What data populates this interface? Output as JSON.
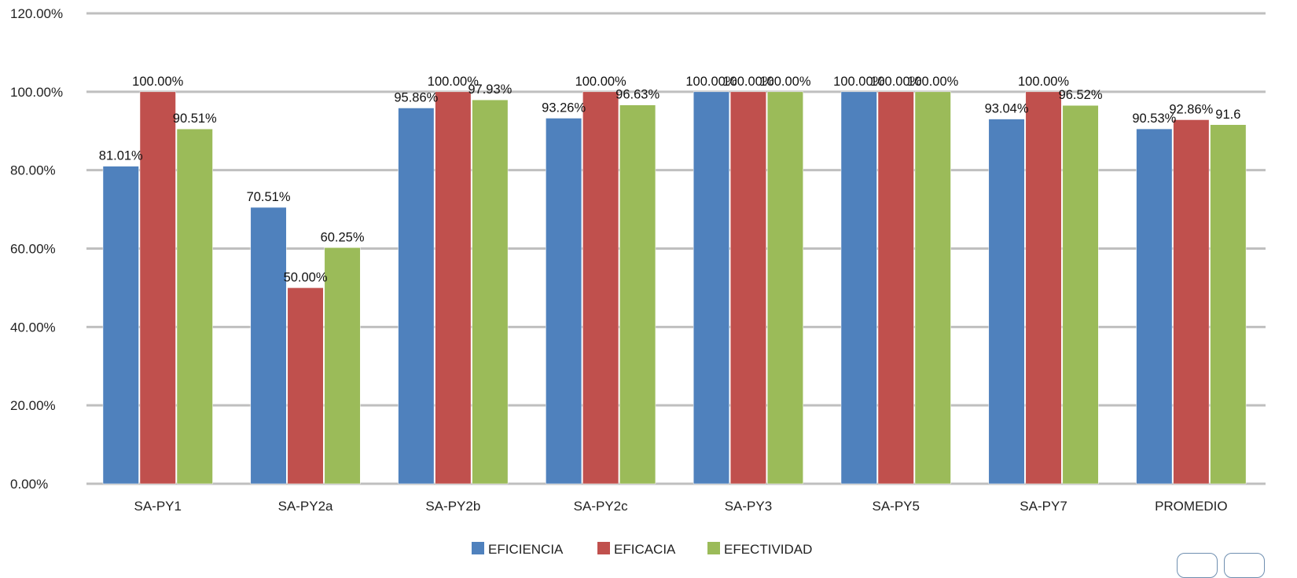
{
  "chart_data": {
    "type": "bar",
    "categories": [
      "SA-PY1",
      "SA-PY2a",
      "SA-PY2b",
      "SA-PY2c",
      "SA-PY3",
      "SA-PY5",
      "SA-PY7",
      "PROMEDIO"
    ],
    "series": [
      {
        "name": "EFICIENCIA",
        "color": "#4f81bd",
        "values": [
          81.01,
          70.51,
          95.86,
          93.26,
          100.0,
          100.0,
          93.04,
          90.53
        ],
        "labels": [
          "81.01%",
          "70.51%",
          "95.86%",
          "93.26%",
          "100.00%",
          "100.00%",
          "93.04%",
          "90.53%"
        ]
      },
      {
        "name": "EFICACIA",
        "color": "#c0504d",
        "values": [
          100.0,
          50.0,
          100.0,
          100.0,
          100.0,
          100.0,
          100.0,
          92.86
        ],
        "labels": [
          "100.00%",
          "50.00%",
          "100.00%",
          "100.00%",
          "100.00%",
          "100.00%",
          "100.00%",
          "92.86%"
        ]
      },
      {
        "name": "EFECTIVIDAD",
        "color": "#9bbb59",
        "values": [
          90.51,
          60.25,
          97.93,
          96.63,
          100.0,
          100.0,
          96.52,
          91.6
        ],
        "labels": [
          "90.51%",
          "60.25%",
          "97.93%",
          "96.63%",
          "100.00%",
          "100.00%",
          "96.52%",
          "91.6"
        ]
      }
    ],
    "ylim": [
      0,
      120
    ],
    "yticks": [
      "0.00%",
      "20.00%",
      "40.00%",
      "60.00%",
      "80.00%",
      "100.00%",
      "120.00%"
    ],
    "grid": true,
    "legend_position": "bottom",
    "title": "",
    "xlabel": "",
    "ylabel": ""
  }
}
